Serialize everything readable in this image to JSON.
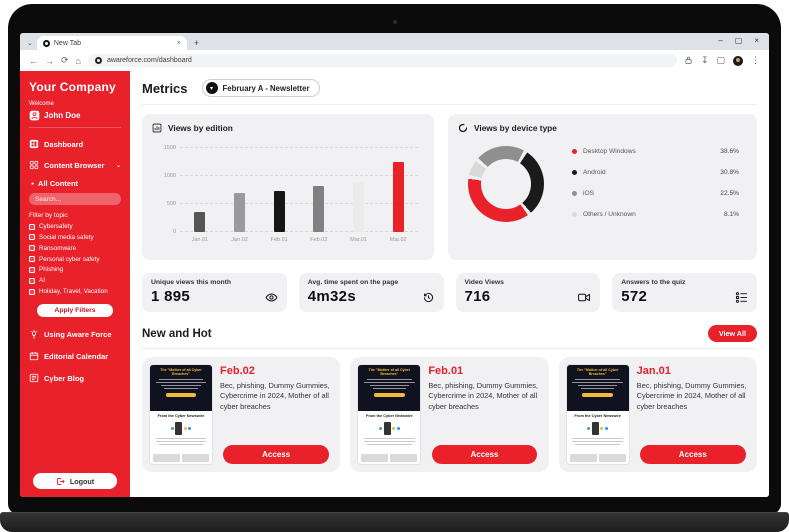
{
  "browser": {
    "tab_title": "New Tab",
    "url": "awareforce.com/dashboard"
  },
  "icons": {
    "tab_list_chevron": "⌄",
    "tab_close": "×",
    "new_tab": "+",
    "minimize": "–",
    "maximize": "▢",
    "window_close": "×",
    "back": "←",
    "forward": "→",
    "refresh": "⟳",
    "home": "⌂",
    "download": "↧",
    "reading_list": "▢",
    "kebab": "⋮",
    "dropdown_chevron": "▾",
    "sidebar_chevron": "⌄",
    "bullet": "●"
  },
  "sidebar": {
    "company": "Your Company",
    "welcome": "Welcome",
    "user": "John Doe",
    "dashboard": "Dashboard",
    "content_browser": "Content Browser",
    "all_content": "All Content",
    "search_placeholder": "Search...",
    "filter_by_topic": "Filter by topic",
    "filters": [
      "Cybersafety",
      "Social media safety",
      "Ransomware",
      "Personal cyber safety",
      "Phishing",
      "AI",
      "Holiday, Travel, Vacation"
    ],
    "apply_filters": "Apply Filters",
    "using_aware_force": "Using Aware Force",
    "editorial_calendar": "Editorial Calendar",
    "cyber_blog": "Cyber Blog",
    "logout": "Logout"
  },
  "header": {
    "title": "Metrics",
    "newsletter_selector": "February A - Newsletter"
  },
  "chart_data": [
    {
      "type": "bar",
      "title": "Views by edition",
      "categories": [
        "Jan.01",
        "Jan.02",
        "Feb.01",
        "Feb.02",
        "Mar.01",
        "Mar.02"
      ],
      "values": [
        350,
        700,
        730,
        830,
        900,
        1250
      ],
      "bar_colors": [
        "#555555",
        "#9a9a9a",
        "#161616",
        "#808080",
        "#ebebeb",
        "#e8212b"
      ],
      "yticks": [
        0,
        500,
        1000,
        1500
      ],
      "ylim": [
        0,
        1500
      ],
      "xlabel": "",
      "ylabel": "",
      "grid": "dashed-horizontal"
    },
    {
      "type": "pie",
      "donut": true,
      "title": "Views by device type",
      "segments": [
        {
          "label": "Desktop Windows",
          "value": 38.6,
          "color": "#e8212b"
        },
        {
          "label": "Android",
          "value": 30.8,
          "color": "#1a1a1a"
        },
        {
          "label": "iOS",
          "value": 22.5,
          "color": "#8f8f8f"
        },
        {
          "label": "Others / Unknown",
          "value": 8.1,
          "color": "#d9d9d9"
        }
      ],
      "value_suffix": "%",
      "legend_position": "right",
      "start_angle": -50,
      "draw_order": [
        2,
        1,
        0,
        3
      ]
    }
  ],
  "stats": [
    {
      "label": "Unique views this month",
      "value": "1 895",
      "icon": "eye-icon"
    },
    {
      "label": "Avg. time spent on the page",
      "value": "4m32s",
      "icon": "history-clock-icon"
    },
    {
      "label": "Video Views",
      "value": "716",
      "icon": "video-camera-icon"
    },
    {
      "label": "Answers to the quiz",
      "value": "572",
      "icon": "quiz-list-icon"
    }
  ],
  "new_and_hot": {
    "title": "New and Hot",
    "view_all": "View All",
    "cards": [
      {
        "date": "Feb.02",
        "description": "Bec, phishing, Dummy Gummies, Cybercrime in 2024, Mother of all cyber breaches",
        "button": "Access"
      },
      {
        "date": "Feb.01",
        "description": "Bec, phishing, Dummy Gummies, Cybercrime in 2024, Mother of all cyber breaches",
        "button": "Access"
      },
      {
        "date": "Jan.01",
        "description": "Bec, phishing, Dummy Gummies, Cybercrime in 2024, Mother of all cyber breaches",
        "button": "Access"
      }
    ]
  },
  "thumbnail": {
    "headline": "The \"Mother of all Cyber Breaches\"",
    "newswire": "From the Cyber Newswire"
  },
  "colors": {
    "accent_red": "#e8212b",
    "card_bg": "#f1f1f3",
    "thumb_yellow": "#f0bc3a"
  }
}
